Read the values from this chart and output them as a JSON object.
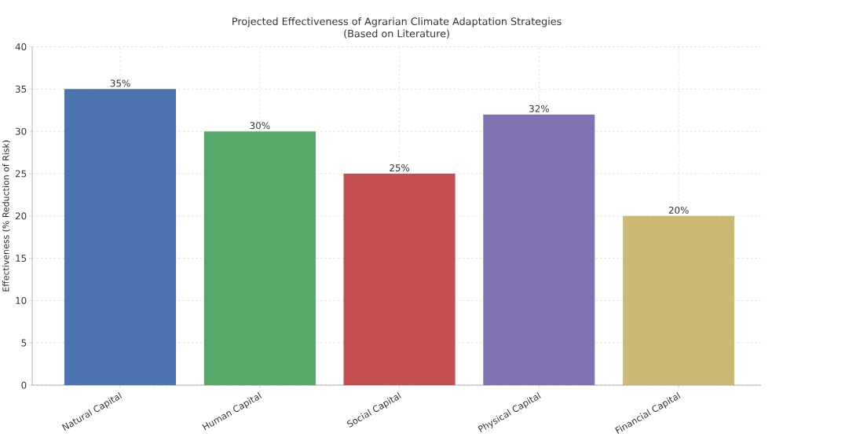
{
  "chart_data": {
    "type": "bar",
    "title": "Projected Effectiveness of Agrarian Climate Adaptation Strategies",
    "subtitle": "(Based on Literature)",
    "ylabel": "Effectiveness (% Reduction of Risk)",
    "categories": [
      "Natural Capital",
      "Human Capital",
      "Social Capital",
      "Physical Capital",
      "Financial Capital"
    ],
    "values": [
      35,
      30,
      25,
      32,
      20
    ],
    "value_labels": [
      "35%",
      "30%",
      "25%",
      "32%",
      "20%"
    ],
    "colors": [
      "#4c72b0",
      "#55a868",
      "#c44e52",
      "#8172b2",
      "#ccb974"
    ],
    "ylim": [
      0,
      40
    ],
    "yticks": [
      0,
      5,
      10,
      15,
      20,
      25,
      30,
      35,
      40
    ],
    "grid": true
  }
}
